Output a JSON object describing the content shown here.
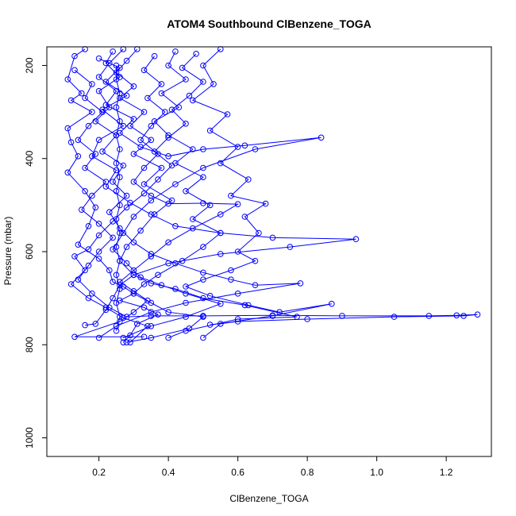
{
  "chart_data": {
    "type": "line",
    "title": "ATOM4 Southbound ClBenzene_TOGA",
    "xlabel": "ClBenzene_TOGA",
    "ylabel": "Pressure (mbar)",
    "xlim": [
      0.05,
      1.33
    ],
    "ylim": [
      160,
      1040
    ],
    "y_reversed": true,
    "grid": false,
    "legend": "none",
    "x_ticks": [
      0.2,
      0.4,
      0.6,
      0.8,
      1.0,
      1.2
    ],
    "x_tick_labels": [
      "0.2",
      "0.4",
      "0.6",
      "0.8",
      "1.0",
      "1.2"
    ],
    "y_ticks": [
      200,
      400,
      600,
      800,
      1000
    ],
    "y_tick_labels": [
      "200",
      "400",
      "600",
      "800",
      "1000"
    ],
    "marker": "open-circle",
    "series": [
      {
        "color": "#0000ff",
        "points": [
          [
            0.16,
            165
          ],
          [
            0.13,
            180
          ],
          [
            0.11,
            230
          ],
          [
            0.15,
            260
          ],
          [
            0.12,
            275
          ],
          [
            0.18,
            300
          ],
          [
            0.11,
            335
          ],
          [
            0.12,
            365
          ],
          [
            0.14,
            395
          ],
          [
            0.11,
            430
          ],
          [
            0.16,
            470
          ],
          [
            0.19,
            505
          ],
          [
            0.17,
            545
          ],
          [
            0.14,
            585
          ],
          [
            0.2,
            615
          ],
          [
            0.23,
            640
          ],
          [
            0.24,
            665
          ],
          [
            0.27,
            675
          ],
          [
            0.3,
            690
          ],
          [
            0.26,
            705
          ],
          [
            0.33,
            720
          ],
          [
            0.37,
            735
          ],
          [
            0.31,
            755
          ],
          [
            0.29,
            780
          ],
          [
            0.27,
            795
          ]
        ]
      },
      {
        "color": "#0000ff",
        "points": [
          [
            0.24,
            170
          ],
          [
            0.22,
            195
          ],
          [
            0.26,
            225
          ],
          [
            0.2,
            255
          ],
          [
            0.23,
            290
          ],
          [
            0.19,
            320
          ],
          [
            0.25,
            350
          ],
          [
            0.21,
            385
          ],
          [
            0.27,
            415
          ],
          [
            0.24,
            450
          ],
          [
            0.28,
            480
          ],
          [
            0.23,
            515
          ],
          [
            0.26,
            550
          ],
          [
            0.3,
            580
          ],
          [
            0.35,
            605
          ],
          [
            0.42,
            625
          ],
          [
            0.5,
            645
          ],
          [
            0.58,
            660
          ],
          [
            0.65,
            672
          ],
          [
            0.78,
            668
          ],
          [
            0.6,
            690
          ],
          [
            0.45,
            710
          ],
          [
            0.35,
            730
          ],
          [
            0.25,
            760
          ],
          [
            0.2,
            785
          ]
        ]
      },
      {
        "color": "#0000ff",
        "points": [
          [
            0.31,
            165
          ],
          [
            0.28,
            190
          ],
          [
            0.25,
            215
          ],
          [
            0.3,
            245
          ],
          [
            0.26,
            270
          ],
          [
            0.33,
            300
          ],
          [
            0.29,
            330
          ],
          [
            0.35,
            360
          ],
          [
            0.3,
            390
          ],
          [
            0.38,
            420
          ],
          [
            0.33,
            455
          ],
          [
            0.41,
            490
          ],
          [
            0.36,
            520
          ],
          [
            0.32,
            555
          ],
          [
            0.28,
            590
          ],
          [
            0.26,
            620
          ],
          [
            0.3,
            650
          ],
          [
            0.35,
            668
          ],
          [
            0.42,
            680
          ],
          [
            0.5,
            700
          ],
          [
            0.62,
            715
          ],
          [
            0.77,
            740
          ],
          [
            0.6,
            745
          ],
          [
            0.45,
            770
          ],
          [
            0.4,
            785
          ]
        ]
      },
      {
        "color": "#0000ff",
        "points": [
          [
            0.42,
            170
          ],
          [
            0.4,
            200
          ],
          [
            0.45,
            230
          ],
          [
            0.38,
            260
          ],
          [
            0.43,
            290
          ],
          [
            0.36,
            320
          ],
          [
            0.4,
            350
          ],
          [
            0.47,
            380
          ],
          [
            0.42,
            410
          ],
          [
            0.5,
            440
          ],
          [
            0.45,
            470
          ],
          [
            0.52,
            500
          ],
          [
            0.47,
            530
          ],
          [
            0.55,
            560
          ],
          [
            0.5,
            590
          ],
          [
            0.44,
            620
          ],
          [
            0.37,
            650
          ],
          [
            0.33,
            670
          ],
          [
            0.3,
            690
          ],
          [
            0.35,
            710
          ],
          [
            0.4,
            730
          ],
          [
            0.5,
            740
          ],
          [
            0.46,
            765
          ],
          [
            0.35,
            785
          ],
          [
            0.28,
            795
          ]
        ]
      },
      {
        "color": "#0000ff",
        "points": [
          [
            0.55,
            165
          ],
          [
            0.5,
            200
          ],
          [
            0.53,
            240
          ],
          [
            0.47,
            275
          ],
          [
            0.57,
            305
          ],
          [
            0.52,
            340
          ],
          [
            0.6,
            375
          ],
          [
            0.55,
            410
          ],
          [
            0.63,
            445
          ],
          [
            0.58,
            480
          ],
          [
            0.68,
            497
          ],
          [
            0.62,
            525
          ],
          [
            0.66,
            560
          ],
          [
            0.6,
            600
          ],
          [
            0.65,
            620
          ],
          [
            0.58,
            640
          ],
          [
            0.5,
            660
          ],
          [
            0.45,
            675
          ],
          [
            0.52,
            695
          ],
          [
            0.63,
            715
          ],
          [
            0.72,
            730
          ],
          [
            0.87,
            712
          ],
          [
            0.7,
            738
          ],
          [
            0.55,
            755
          ],
          [
            0.5,
            785
          ]
        ]
      },
      {
        "color": "#0000ff",
        "points": [
          [
            0.2,
            185
          ],
          [
            0.26,
            205
          ],
          [
            0.22,
            235
          ],
          [
            0.28,
            265
          ],
          [
            0.21,
            295
          ],
          [
            0.27,
            330
          ],
          [
            0.2,
            360
          ],
          [
            0.18,
            395
          ],
          [
            0.25,
            425
          ],
          [
            0.22,
            460
          ],
          [
            0.29,
            495
          ],
          [
            0.35,
            520
          ],
          [
            0.42,
            545
          ],
          [
            0.55,
            560
          ],
          [
            0.7,
            570
          ],
          [
            0.94,
            573
          ],
          [
            0.75,
            590
          ],
          [
            0.55,
            605
          ],
          [
            0.4,
            625
          ],
          [
            0.3,
            650
          ],
          [
            0.26,
            672
          ],
          [
            0.24,
            700
          ],
          [
            0.22,
            725
          ],
          [
            0.19,
            755
          ],
          [
            0.16,
            758
          ]
        ]
      },
      {
        "color": "#0000ff",
        "points": [
          [
            0.27,
            165
          ],
          [
            0.23,
            195
          ],
          [
            0.2,
            225
          ],
          [
            0.25,
            255
          ],
          [
            0.22,
            285
          ],
          [
            0.3,
            315
          ],
          [
            0.26,
            345
          ],
          [
            0.32,
            375
          ],
          [
            0.4,
            395
          ],
          [
            0.5,
            380
          ],
          [
            0.62,
            372
          ],
          [
            0.84,
            355
          ],
          [
            0.65,
            380
          ],
          [
            0.5,
            420
          ],
          [
            0.42,
            455
          ],
          [
            0.35,
            490
          ],
          [
            0.3,
            525
          ],
          [
            0.27,
            560
          ],
          [
            0.24,
            595
          ],
          [
            0.28,
            625
          ],
          [
            0.32,
            655
          ],
          [
            0.38,
            672
          ],
          [
            0.45,
            690
          ],
          [
            0.55,
            712
          ],
          [
            0.45,
            740
          ],
          [
            0.35,
            760
          ],
          [
            0.27,
            785
          ]
        ]
      },
      {
        "color": "#0000ff",
        "points": [
          [
            0.13,
            210
          ],
          [
            0.18,
            240
          ],
          [
            0.16,
            270
          ],
          [
            0.21,
            300
          ],
          [
            0.17,
            330
          ],
          [
            0.14,
            360
          ],
          [
            0.19,
            390
          ],
          [
            0.16,
            420
          ],
          [
            0.22,
            450
          ],
          [
            0.18,
            480
          ],
          [
            0.15,
            510
          ],
          [
            0.2,
            540
          ],
          [
            0.24,
            570
          ],
          [
            0.2,
            600
          ],
          [
            0.17,
            630
          ],
          [
            0.14,
            660
          ],
          [
            0.18,
            690
          ],
          [
            0.23,
            720
          ],
          [
            0.28,
            740
          ],
          [
            0.35,
            738
          ],
          [
            0.5,
            738
          ],
          [
            0.7,
            737
          ],
          [
            0.9,
            738
          ],
          [
            1.15,
            738
          ],
          [
            1.23,
            737
          ],
          [
            1.29,
            735
          ],
          [
            1.25,
            738
          ],
          [
            1.05,
            740
          ],
          [
            0.8,
            745
          ],
          [
            0.6,
            750
          ],
          [
            0.52,
            757
          ]
        ]
      },
      {
        "color": "#0000ff",
        "points": [
          [
            0.36,
            180
          ],
          [
            0.33,
            210
          ],
          [
            0.38,
            240
          ],
          [
            0.34,
            270
          ],
          [
            0.39,
            300
          ],
          [
            0.35,
            330
          ],
          [
            0.32,
            360
          ],
          [
            0.37,
            390
          ],
          [
            0.33,
            420
          ],
          [
            0.3,
            450
          ],
          [
            0.35,
            480
          ],
          [
            0.4,
            497
          ],
          [
            0.5,
            496
          ],
          [
            0.6,
            498
          ],
          [
            0.55,
            520
          ],
          [
            0.47,
            550
          ],
          [
            0.4,
            580
          ],
          [
            0.35,
            610
          ],
          [
            0.3,
            640
          ],
          [
            0.26,
            665
          ],
          [
            0.3,
            685
          ],
          [
            0.34,
            705
          ],
          [
            0.3,
            730
          ],
          [
            0.26,
            750
          ],
          [
            0.13,
            783
          ],
          [
            0.33,
            783
          ]
        ]
      },
      {
        "color": "#0000ff",
        "points": [
          [
            0.48,
            175
          ],
          [
            0.44,
            205
          ],
          [
            0.5,
            235
          ],
          [
            0.46,
            265
          ],
          [
            0.41,
            295
          ],
          [
            0.45,
            325
          ],
          [
            0.4,
            355
          ],
          [
            0.36,
            385
          ],
          [
            0.41,
            415
          ],
          [
            0.37,
            445
          ],
          [
            0.33,
            475
          ],
          [
            0.28,
            505
          ],
          [
            0.24,
            535
          ],
          [
            0.2,
            565
          ],
          [
            0.17,
            595
          ],
          [
            0.13,
            610
          ],
          [
            0.16,
            640
          ],
          [
            0.12,
            670
          ],
          [
            0.17,
            700
          ],
          [
            0.22,
            720
          ],
          [
            0.27,
            742
          ],
          [
            0.34,
            760
          ],
          [
            0.29,
            795
          ]
        ]
      },
      {
        "color": "#0000ff",
        "points": [
          [
            0.25,
            200
          ],
          [
            0.25,
            230
          ],
          [
            0.26,
            260
          ],
          [
            0.25,
            290
          ],
          [
            0.26,
            320
          ],
          [
            0.25,
            350
          ],
          [
            0.26,
            380
          ],
          [
            0.25,
            410
          ],
          [
            0.26,
            440
          ],
          [
            0.25,
            470
          ],
          [
            0.26,
            500
          ],
          [
            0.25,
            530
          ],
          [
            0.26,
            560
          ],
          [
            0.25,
            590
          ],
          [
            0.26,
            620
          ],
          [
            0.25,
            650
          ],
          [
            0.26,
            680
          ],
          [
            0.25,
            710
          ],
          [
            0.26,
            740
          ],
          [
            0.25,
            770
          ]
        ]
      }
    ]
  }
}
